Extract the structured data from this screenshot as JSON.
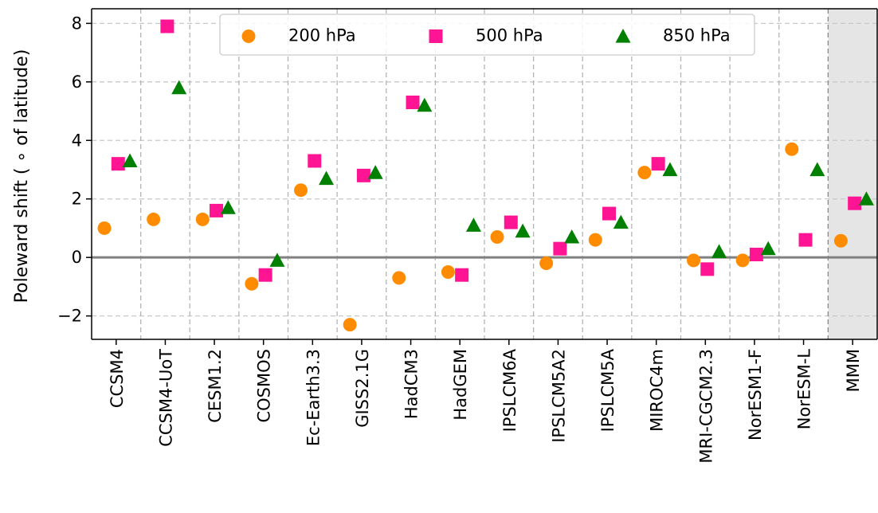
{
  "chart_data": {
    "type": "scatter",
    "ylabel": "Poleward shift ( ∘  of latitude)",
    "ylim": [
      -2.8,
      8.5
    ],
    "yticks": [
      -2,
      0,
      2,
      4,
      6,
      8
    ],
    "ytick_labels": [
      "−2",
      "0",
      "2",
      "4",
      "6",
      "8"
    ],
    "categories": [
      "CCSM4",
      "CCSM4-UoT",
      "CESM1.2",
      "COSMOS",
      "Ec-Earth3.3",
      "GISS2.1G",
      "HadCM3",
      "HadGEM",
      "IPSLCM6A",
      "IPSLCM5A2",
      "IPSLCM5A",
      "MIROC4m",
      "MRI-CGCM2.3",
      "NorESM1-F",
      "NorESM-L",
      "MMM"
    ],
    "highlight_category": "MMM",
    "highlight_color": "#e5e5e5",
    "zero_line": true,
    "grid": "dashed",
    "legend_position": "top-center",
    "series": [
      {
        "name": "200 hPa",
        "marker": "circle",
        "color": "#ff8c00",
        "values": [
          1.0,
          1.3,
          1.3,
          -0.9,
          2.3,
          -2.3,
          -0.7,
          -0.5,
          0.7,
          -0.2,
          0.6,
          2.9,
          -0.1,
          -0.1,
          3.7,
          0.57
        ]
      },
      {
        "name": "500 hPa",
        "marker": "square",
        "color": "#ff1493",
        "values": [
          3.2,
          7.9,
          1.6,
          -0.6,
          3.3,
          2.8,
          5.3,
          -0.6,
          1.2,
          0.3,
          1.5,
          3.2,
          -0.4,
          0.1,
          0.6,
          1.85
        ]
      },
      {
        "name": "850 hPa",
        "marker": "triangle",
        "color": "#008000",
        "values": [
          3.3,
          5.8,
          1.7,
          -0.1,
          2.7,
          2.9,
          5.2,
          1.1,
          0.9,
          0.7,
          1.2,
          3.0,
          0.2,
          0.3,
          3.0,
          2.0
        ]
      }
    ]
  }
}
